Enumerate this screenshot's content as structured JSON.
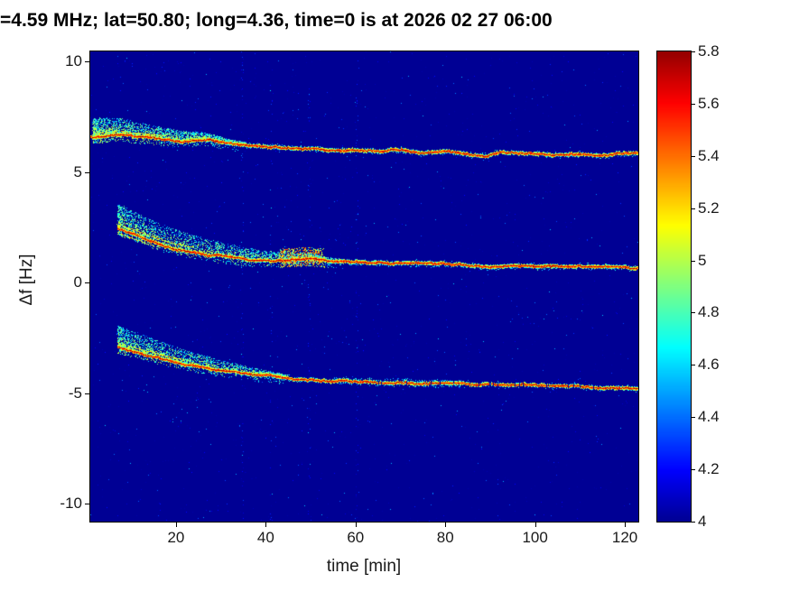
{
  "chart_data": {
    "type": "heatmap",
    "title": "=4.59 MHz;  lat=50.80; long=4.36, time=0 is at 2026 02 27 06:00",
    "xlabel": "time [min]",
    "ylabel": "Δf [Hz]",
    "xlim": [
      0.9,
      123
    ],
    "ylim": [
      -10.8,
      10.45
    ],
    "x_ticks": [
      20,
      40,
      60,
      80,
      100,
      120
    ],
    "y_ticks": [
      10,
      5,
      0,
      -5,
      -10
    ],
    "grid": false,
    "background_value": 4,
    "colorbar": {
      "min": 4,
      "max": 5.8,
      "colormap": "jet",
      "position": "right",
      "tick_values": [
        4,
        4.2,
        4.4,
        4.6,
        4.8,
        5,
        5.2,
        5.4,
        5.6,
        5.8
      ],
      "tick_labels": [
        "4",
        "4.2",
        "4.4",
        "4.6",
        "4.8",
        "5",
        "5.2",
        "5.4",
        "5.6",
        "5.8"
      ]
    },
    "series": [
      {
        "name": "upper Doppler trace (~6.6 Hz falling to ~5.8 Hz)",
        "points": [
          [
            1,
            6.6
          ],
          [
            3,
            6.62
          ],
          [
            5,
            6.65
          ],
          [
            7,
            6.72
          ],
          [
            9,
            6.68
          ],
          [
            11,
            6.6
          ],
          [
            13,
            6.58
          ],
          [
            15,
            6.55
          ],
          [
            17,
            6.5
          ],
          [
            19,
            6.48
          ],
          [
            21,
            6.45
          ],
          [
            23,
            6.45
          ],
          [
            25,
            6.5
          ],
          [
            27,
            6.48
          ],
          [
            29,
            6.4
          ],
          [
            31,
            6.32
          ],
          [
            33,
            6.28
          ],
          [
            35,
            6.25
          ],
          [
            38,
            6.2
          ],
          [
            41,
            6.15
          ],
          [
            44,
            6.12
          ],
          [
            47,
            6.1
          ],
          [
            50,
            6.07
          ],
          [
            53,
            6.03
          ],
          [
            56,
            6.0
          ],
          [
            59,
            6.0
          ],
          [
            62,
            5.98
          ],
          [
            65,
            5.95
          ],
          [
            68,
            5.97
          ],
          [
            71,
            5.93
          ],
          [
            74,
            5.9
          ],
          [
            77,
            5.93
          ],
          [
            80,
            5.95
          ],
          [
            83,
            5.85
          ],
          [
            86,
            5.75
          ],
          [
            89,
            5.78
          ],
          [
            92,
            5.88
          ],
          [
            95,
            5.9
          ],
          [
            98,
            5.88
          ],
          [
            101,
            5.84
          ],
          [
            104,
            5.8
          ],
          [
            107,
            5.84
          ],
          [
            110,
            5.87
          ],
          [
            113,
            5.83
          ],
          [
            116,
            5.8
          ],
          [
            119,
            5.84
          ],
          [
            121,
            5.83
          ],
          [
            123,
            5.8
          ]
        ]
      },
      {
        "name": "middle Doppler trace (~2.4 Hz falling to ~0.7 Hz)",
        "points": [
          [
            7,
            2.45
          ],
          [
            9,
            2.3
          ],
          [
            11,
            2.15
          ],
          [
            13,
            2.0
          ],
          [
            15,
            1.85
          ],
          [
            17,
            1.72
          ],
          [
            19,
            1.6
          ],
          [
            21,
            1.5
          ],
          [
            23,
            1.42
          ],
          [
            25,
            1.35
          ],
          [
            27,
            1.28
          ],
          [
            29,
            1.22
          ],
          [
            31,
            1.17
          ],
          [
            33,
            1.12
          ],
          [
            35,
            1.08
          ],
          [
            37,
            1.05
          ],
          [
            39,
            1.02
          ],
          [
            41,
            1.0
          ],
          [
            43,
            1.0
          ],
          [
            45,
            1.02
          ],
          [
            47,
            1.05
          ],
          [
            49,
            1.08
          ],
          [
            51,
            1.05
          ],
          [
            53,
            1.0
          ],
          [
            55,
            0.97
          ],
          [
            57,
            0.95
          ],
          [
            60,
            0.92
          ],
          [
            63,
            0.9
          ],
          [
            66,
            0.88
          ],
          [
            69,
            0.86
          ],
          [
            72,
            0.84
          ],
          [
            75,
            0.82
          ],
          [
            78,
            0.82
          ],
          [
            81,
            0.8
          ],
          [
            84,
            0.78
          ],
          [
            87,
            0.74
          ],
          [
            90,
            0.7
          ],
          [
            93,
            0.72
          ],
          [
            96,
            0.75
          ],
          [
            99,
            0.73
          ],
          [
            102,
            0.7
          ],
          [
            105,
            0.7
          ],
          [
            108,
            0.71
          ],
          [
            111,
            0.7
          ],
          [
            114,
            0.69
          ],
          [
            117,
            0.7
          ],
          [
            120,
            0.7
          ],
          [
            123,
            0.68
          ]
        ]
      },
      {
        "name": "lower Doppler trace (~-2.9 Hz falling to ~-4.75 Hz)",
        "points": [
          [
            7,
            -2.9
          ],
          [
            9,
            -3.0
          ],
          [
            11,
            -3.1
          ],
          [
            13,
            -3.2
          ],
          [
            15,
            -3.32
          ],
          [
            17,
            -3.42
          ],
          [
            19,
            -3.52
          ],
          [
            21,
            -3.6
          ],
          [
            23,
            -3.68
          ],
          [
            25,
            -3.76
          ],
          [
            27,
            -3.83
          ],
          [
            29,
            -3.9
          ],
          [
            31,
            -3.96
          ],
          [
            33,
            -4.02
          ],
          [
            35,
            -4.07
          ],
          [
            37,
            -4.12
          ],
          [
            39,
            -4.16
          ],
          [
            41,
            -4.2
          ],
          [
            43,
            -4.24
          ],
          [
            45,
            -4.28
          ],
          [
            47,
            -4.31
          ],
          [
            49,
            -4.34
          ],
          [
            51,
            -4.36
          ],
          [
            53,
            -4.38
          ],
          [
            55,
            -4.4
          ],
          [
            58,
            -4.42
          ],
          [
            61,
            -4.44
          ],
          [
            64,
            -4.46
          ],
          [
            67,
            -4.48
          ],
          [
            70,
            -4.5
          ],
          [
            73,
            -4.52
          ],
          [
            76,
            -4.53
          ],
          [
            79,
            -4.55
          ],
          [
            82,
            -4.56
          ],
          [
            85,
            -4.58
          ],
          [
            88,
            -4.59
          ],
          [
            91,
            -4.6
          ],
          [
            94,
            -4.62
          ],
          [
            97,
            -4.63
          ],
          [
            100,
            -4.65
          ],
          [
            103,
            -4.66
          ],
          [
            106,
            -4.68
          ],
          [
            109,
            -4.69
          ],
          [
            112,
            -4.7
          ],
          [
            115,
            -4.72
          ],
          [
            118,
            -4.73
          ],
          [
            121,
            -4.74
          ],
          [
            123,
            -4.75
          ]
        ]
      }
    ],
    "render": {
      "seed": 1337,
      "bg_speckles": 1700,
      "stripes": [
        {
          "t": 34.7,
          "p": 0.1
        },
        {
          "t": 41.2,
          "p": 0.06
        },
        {
          "t": 49.6,
          "p": 0.08
        },
        {
          "t": 60.3,
          "p": 0.12
        }
      ],
      "traces": [
        {
          "cloud": {
            "t0": 1.5,
            "len": 34,
            "s0": 0.75,
            "n": 2600
          },
          "fade": {
            "start": 123,
            "gap": 0
          },
          "strands": [
            {
              "t0": 2,
              "t1": 17,
              "df": 0.15
            }
          ],
          "sparkle": {
            "t0": 35,
            "t1": 123,
            "n": 260,
            "spread": 0.12
          }
        },
        {
          "cloud": {
            "t0": 7,
            "len": 50,
            "s0": 1.0,
            "n": 3200
          },
          "fade": {
            "start": 105,
            "gap": 0.05
          },
          "strands": [
            {
              "t0": 8,
              "t1": 24,
              "df": 0.22
            },
            {
              "t0": 8,
              "t1": 16,
              "df": -0.18
            }
          ],
          "sparkle": {
            "t0": 57,
            "t1": 123,
            "n": 260,
            "spread": 0.12
          },
          "blob": {
            "t0": 43,
            "t1": 53,
            "lo": -0.3,
            "hi": 0.55,
            "n": 650
          }
        },
        {
          "cloud": {
            "t0": 7,
            "len": 38,
            "s0": 0.85,
            "n": 2400
          },
          "fade": {
            "start": 62,
            "gap": 0.16
          },
          "strands": [
            {
              "t0": 8,
              "t1": 22,
              "df": 0.16
            }
          ],
          "sparkle": {
            "t0": 55,
            "t1": 85,
            "n": 240,
            "spread": 0.18
          }
        }
      ]
    }
  }
}
